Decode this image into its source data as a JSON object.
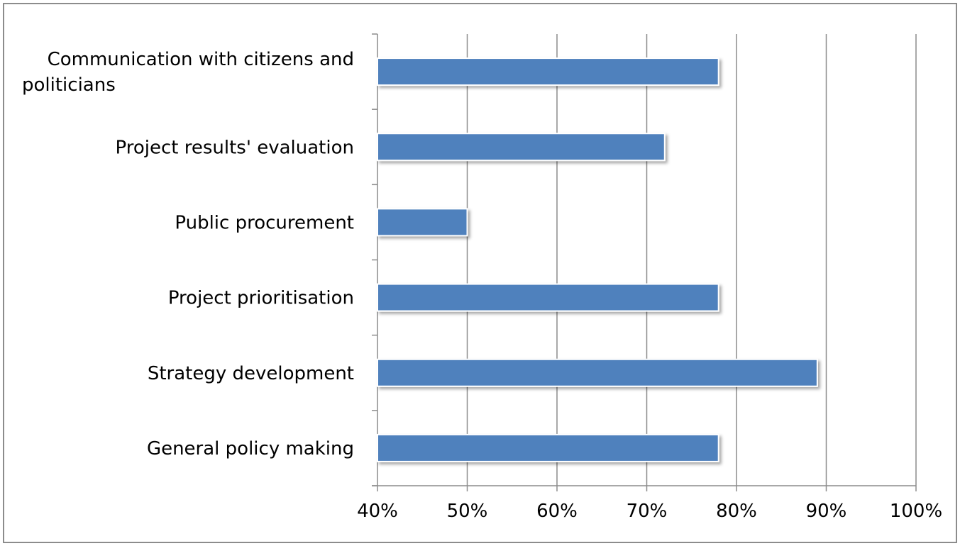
{
  "chart_data": {
    "type": "bar",
    "orientation": "horizontal",
    "title": "",
    "xlabel": "",
    "ylabel": "",
    "categories": [
      [
        "Communication with citizens and",
        "politicians"
      ],
      [
        "Project results' evaluation"
      ],
      [
        "Public procurement"
      ],
      [
        "Project prioritisation"
      ],
      [
        "Strategy development"
      ],
      [
        "General policy making"
      ]
    ],
    "values": [
      78,
      72,
      50,
      78,
      89,
      78
    ],
    "xlim": [
      40,
      100
    ],
    "xticks": [
      "40%",
      "50%",
      "60%",
      "70%",
      "80%",
      "90%",
      "100%"
    ],
    "xtick_values": [
      40,
      50,
      60,
      70,
      80,
      90,
      100
    ],
    "grid": "vertical",
    "legend": "none",
    "bar_color": "#4f81bd"
  }
}
